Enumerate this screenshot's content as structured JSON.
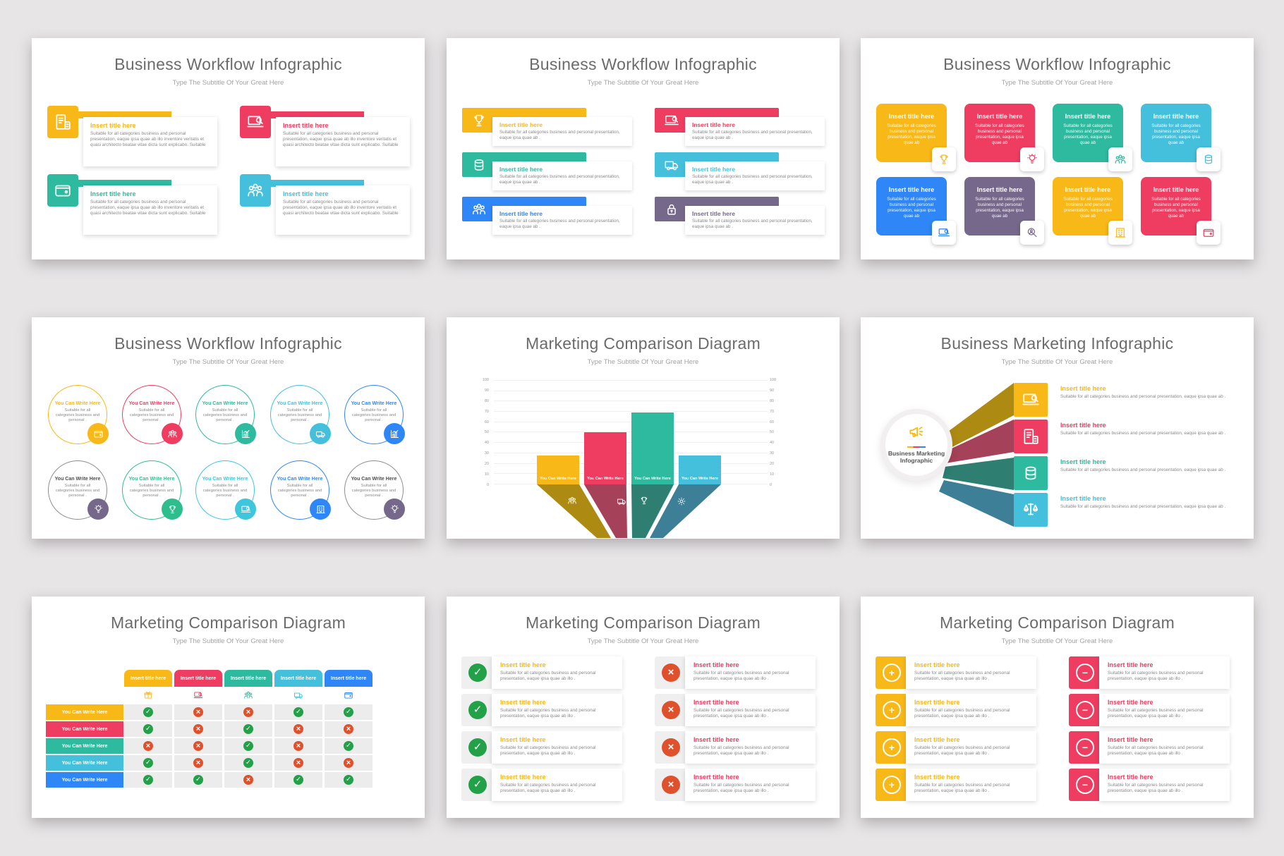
{
  "palette": {
    "yellow": "#f8b817",
    "red": "#ee3d60",
    "teal": "#2eba9f",
    "cyan": "#44c0dc",
    "blue": "#2f86f6",
    "purple": "#76688b",
    "green_check": "#22a148",
    "orange_cross": "#df512c"
  },
  "chart_data": {
    "type": "bar",
    "title": "Marketing Comparison Diagram",
    "subtitle": "Type The Subtitle Of Your Great Here",
    "categories": [
      "You Can Write Here",
      "You Can Write Here",
      "You Can Write Here",
      "You Can Write Here"
    ],
    "values": [
      28,
      50,
      69,
      28
    ],
    "colors": [
      "#f8b817",
      "#ee3d60",
      "#2eba9f",
      "#44c0dc"
    ],
    "xlabel": "",
    "ylabel": "",
    "ylim": [
      0,
      100
    ],
    "ytick_step": 10,
    "grid": true,
    "legend": "none",
    "axis_sides": [
      "left",
      "right"
    ]
  },
  "slides": {
    "cards": {
      "title": "Business Workflow Infographic",
      "subtitle": "Type The Subtitle Of Your Great Here",
      "item_title": "Insert title here",
      "body": "Suitable for all categories business and personal presentation, eaque ipsa quae ab illo inventore veritatis et quasi architecto beatae vitae dicta sunt explicabo. Suitable",
      "items": [
        {
          "color": "#f8b817",
          "icon": "document-calculator"
        },
        {
          "color": "#ee3d60",
          "icon": "laptop-search"
        },
        {
          "color": "#2eba9f",
          "icon": "wallet"
        },
        {
          "color": "#44c0dc",
          "icon": "team"
        }
      ]
    },
    "bars": {
      "title": "Business Workflow Infographic",
      "subtitle": "Type The Subtitle Of Your Great Here",
      "item_title": "Insert title here",
      "body": "Suitable for all categories business and personal presentation, eaque ipsa quae ab .",
      "items": [
        {
          "color": "#f8b817",
          "icon": "trophy"
        },
        {
          "color": "#ee3d60",
          "icon": "laptop-search"
        },
        {
          "color": "#2eba9f",
          "icon": "coins"
        },
        {
          "color": "#44c0dc",
          "icon": "truck"
        },
        {
          "color": "#2f86f6",
          "icon": "team"
        },
        {
          "color": "#76688b",
          "icon": "money-lock"
        }
      ]
    },
    "boxes": {
      "title": "Business Workflow Infographic",
      "subtitle": "Type The Subtitle Of Your Great Here",
      "item_title": "Insert title here",
      "body": "Suitable for all categories business and personal presentation, eaque ipsa quae ab",
      "items": [
        {
          "color": "#f8b817",
          "icon": "trophy"
        },
        {
          "color": "#ee3d60",
          "icon": "idea-bulb"
        },
        {
          "color": "#2eba9f",
          "icon": "team"
        },
        {
          "color": "#44c0dc",
          "icon": "coins"
        },
        {
          "color": "#2f86f6",
          "icon": "laptop-search"
        },
        {
          "color": "#76688b",
          "icon": "search-person"
        },
        {
          "color": "#f8b817",
          "icon": "building"
        },
        {
          "color": "#ee3d60",
          "icon": "wallet"
        }
      ]
    },
    "circles": {
      "title": "Business Workflow Infographic",
      "subtitle": "Type The Subtitle Of Your Great Here",
      "item_title": "You Can Write Here",
      "body": "Suitable for all categories business and personal .",
      "items": [
        {
          "outline": "#f8b817",
          "titleColor": "#f8b817",
          "fill": "#f8b817",
          "icon": "wallet"
        },
        {
          "outline": "#ee3d60",
          "titleColor": "#ee3d60",
          "fill": "#ee3d60",
          "icon": "team"
        },
        {
          "outline": "#2eba9f",
          "titleColor": "#2eba9f",
          "fill": "#2eba9f",
          "icon": "bar-chart"
        },
        {
          "outline": "#44c0dc",
          "titleColor": "#44c0dc",
          "fill": "#44c0dc",
          "icon": "truck"
        },
        {
          "outline": "#2f86f6",
          "titleColor": "#2f86f6",
          "fill": "#2f86f6",
          "icon": "bar-chart"
        },
        {
          "outline": "#8e8e8e",
          "titleColor": "#4d4d4d",
          "fill": "#76688b",
          "icon": "idea-bulb"
        },
        {
          "outline": "#2ebe8d",
          "titleColor": "#2ebe8d",
          "fill": "#2ebe8d",
          "icon": "trophy"
        },
        {
          "outline": "#3ec6dc",
          "titleColor": "#3ec6dc",
          "fill": "#3ec6dc",
          "icon": "laptop-search"
        },
        {
          "outline": "#2f86f6",
          "titleColor": "#2f86f6",
          "fill": "#2f86f6",
          "icon": "building"
        },
        {
          "outline": "#8e8e8e",
          "titleColor": "#4d4d4d",
          "fill": "#76688b",
          "icon": "idea-bulb"
        }
      ]
    },
    "chart": {
      "title": "Marketing Comparison Diagram",
      "subtitle": "Type The Subtitle Of Your Great Here",
      "axis": [
        "100",
        "90",
        "80",
        "70",
        "60",
        "50",
        "40",
        "30",
        "20",
        "10",
        "0"
      ],
      "bar_label": "You Can Write Here",
      "bars": [
        {
          "value": 28,
          "color": "#f8b817",
          "dark": "#ad8a12",
          "icon": "team",
          "label": "You Can Write Here"
        },
        {
          "value": 50,
          "color": "#ee3d60",
          "dark": "#a54159",
          "icon": "truck",
          "label": "You Can Write Here"
        },
        {
          "value": 69,
          "color": "#2eba9f",
          "dark": "#2e7e72",
          "icon": "trophy",
          "label": "You Can Write Here"
        },
        {
          "value": 28,
          "color": "#44c0dc",
          "dark": "#3d7f96",
          "icon": "gear",
          "label": "You Can Write Here"
        }
      ]
    },
    "fan": {
      "title": "Business Marketing Infographic",
      "subtitle": "Type The Subtitle Of Your Great Here",
      "center_label": "Business Marketing Infographic",
      "center_icon": "megaphone",
      "item_title": "Insert title here",
      "body": "Suitable for all categories business and personal presentation, eaque ipsa quae ab .",
      "items": [
        {
          "color": "#f8b817",
          "dark": "#ad8a12",
          "icon": "laptop-search"
        },
        {
          "color": "#ee3d60",
          "dark": "#a54159",
          "icon": "document-calculator"
        },
        {
          "color": "#2eba9f",
          "dark": "#2e7e72",
          "icon": "coins"
        },
        {
          "color": "#44c0dc",
          "dark": "#3d7f96",
          "icon": "balance-scale"
        }
      ]
    },
    "table": {
      "title": "Marketing Comparison Diagram",
      "subtitle": "Type The Subtitle Of Your Great Here",
      "col_title": "Insert title here",
      "row_label": "You Can Write Here",
      "columns": [
        {
          "color": "#f8b817",
          "icon": "gift"
        },
        {
          "color": "#ee3d60",
          "icon": "laptop-search"
        },
        {
          "color": "#2eba9f",
          "icon": "team"
        },
        {
          "color": "#44c0dc",
          "icon": "truck"
        },
        {
          "color": "#2f86f6",
          "icon": "wallet"
        }
      ],
      "rows": [
        {
          "color": "#f8b817",
          "cells": [
            "check",
            "cross",
            "cross",
            "check",
            "check"
          ]
        },
        {
          "color": "#ee3d60",
          "cells": [
            "check",
            "cross",
            "check",
            "cross",
            "cross"
          ]
        },
        {
          "color": "#2eba9f",
          "cells": [
            "cross",
            "cross",
            "check",
            "cross",
            "check"
          ]
        },
        {
          "color": "#44c0dc",
          "cells": [
            "check",
            "cross",
            "check",
            "cross",
            "cross"
          ]
        },
        {
          "color": "#2f86f6",
          "cells": [
            "check",
            "check",
            "cross",
            "check",
            "check"
          ]
        }
      ]
    },
    "checklist": {
      "title": "Marketing Comparison Diagram",
      "subtitle": "Type The Subtitle Of Your Great Here",
      "item_title": "Insert title here",
      "body": "Suitable for all categories business and personal presentation, eaque ipsa quae ab illo .",
      "left_items": [
        {
          "mark": "check",
          "badge": "#22a148",
          "tile": "#efefef",
          "titleColor": "#f8b817"
        },
        {
          "mark": "check",
          "badge": "#22a148",
          "tile": "#efefef",
          "titleColor": "#f8b817"
        },
        {
          "mark": "check",
          "badge": "#22a148",
          "tile": "#efefef",
          "titleColor": "#f8b817"
        },
        {
          "mark": "check",
          "badge": "#22a148",
          "tile": "#efefef",
          "titleColor": "#f8b817"
        }
      ],
      "right_items": [
        {
          "mark": "cross",
          "badge": "#df512c",
          "tile": "#efefef",
          "titleColor": "#ee3d60"
        },
        {
          "mark": "cross",
          "badge": "#df512c",
          "tile": "#efefef",
          "titleColor": "#ee3d60"
        },
        {
          "mark": "cross",
          "badge": "#df512c",
          "tile": "#efefef",
          "titleColor": "#ee3d60"
        },
        {
          "mark": "cross",
          "badge": "#df512c",
          "tile": "#efefef",
          "titleColor": "#ee3d60"
        }
      ]
    },
    "pluslist": {
      "title": "Marketing Comparison Diagram",
      "subtitle": "Type The Subtitle Of Your Great Here",
      "item_title": "Insert title here",
      "body": "Suitable for all categories business and personal presentation, eaque ipsa quae ab illo .",
      "left_items": [
        {
          "mark": "plus",
          "tile": "#f8b817",
          "titleColor": "#f8b817"
        },
        {
          "mark": "plus",
          "tile": "#f8b817",
          "titleColor": "#f8b817"
        },
        {
          "mark": "plus",
          "tile": "#f8b817",
          "titleColor": "#f8b817"
        },
        {
          "mark": "plus",
          "tile": "#f8b817",
          "titleColor": "#f8b817"
        }
      ],
      "right_items": [
        {
          "mark": "minus",
          "tile": "#ee3d60",
          "titleColor": "#ee3d60"
        },
        {
          "mark": "minus",
          "tile": "#ee3d60",
          "titleColor": "#ee3d60"
        },
        {
          "mark": "minus",
          "tile": "#ee3d60",
          "titleColor": "#ee3d60"
        },
        {
          "mark": "minus",
          "tile": "#ee3d60",
          "titleColor": "#ee3d60"
        }
      ]
    }
  }
}
